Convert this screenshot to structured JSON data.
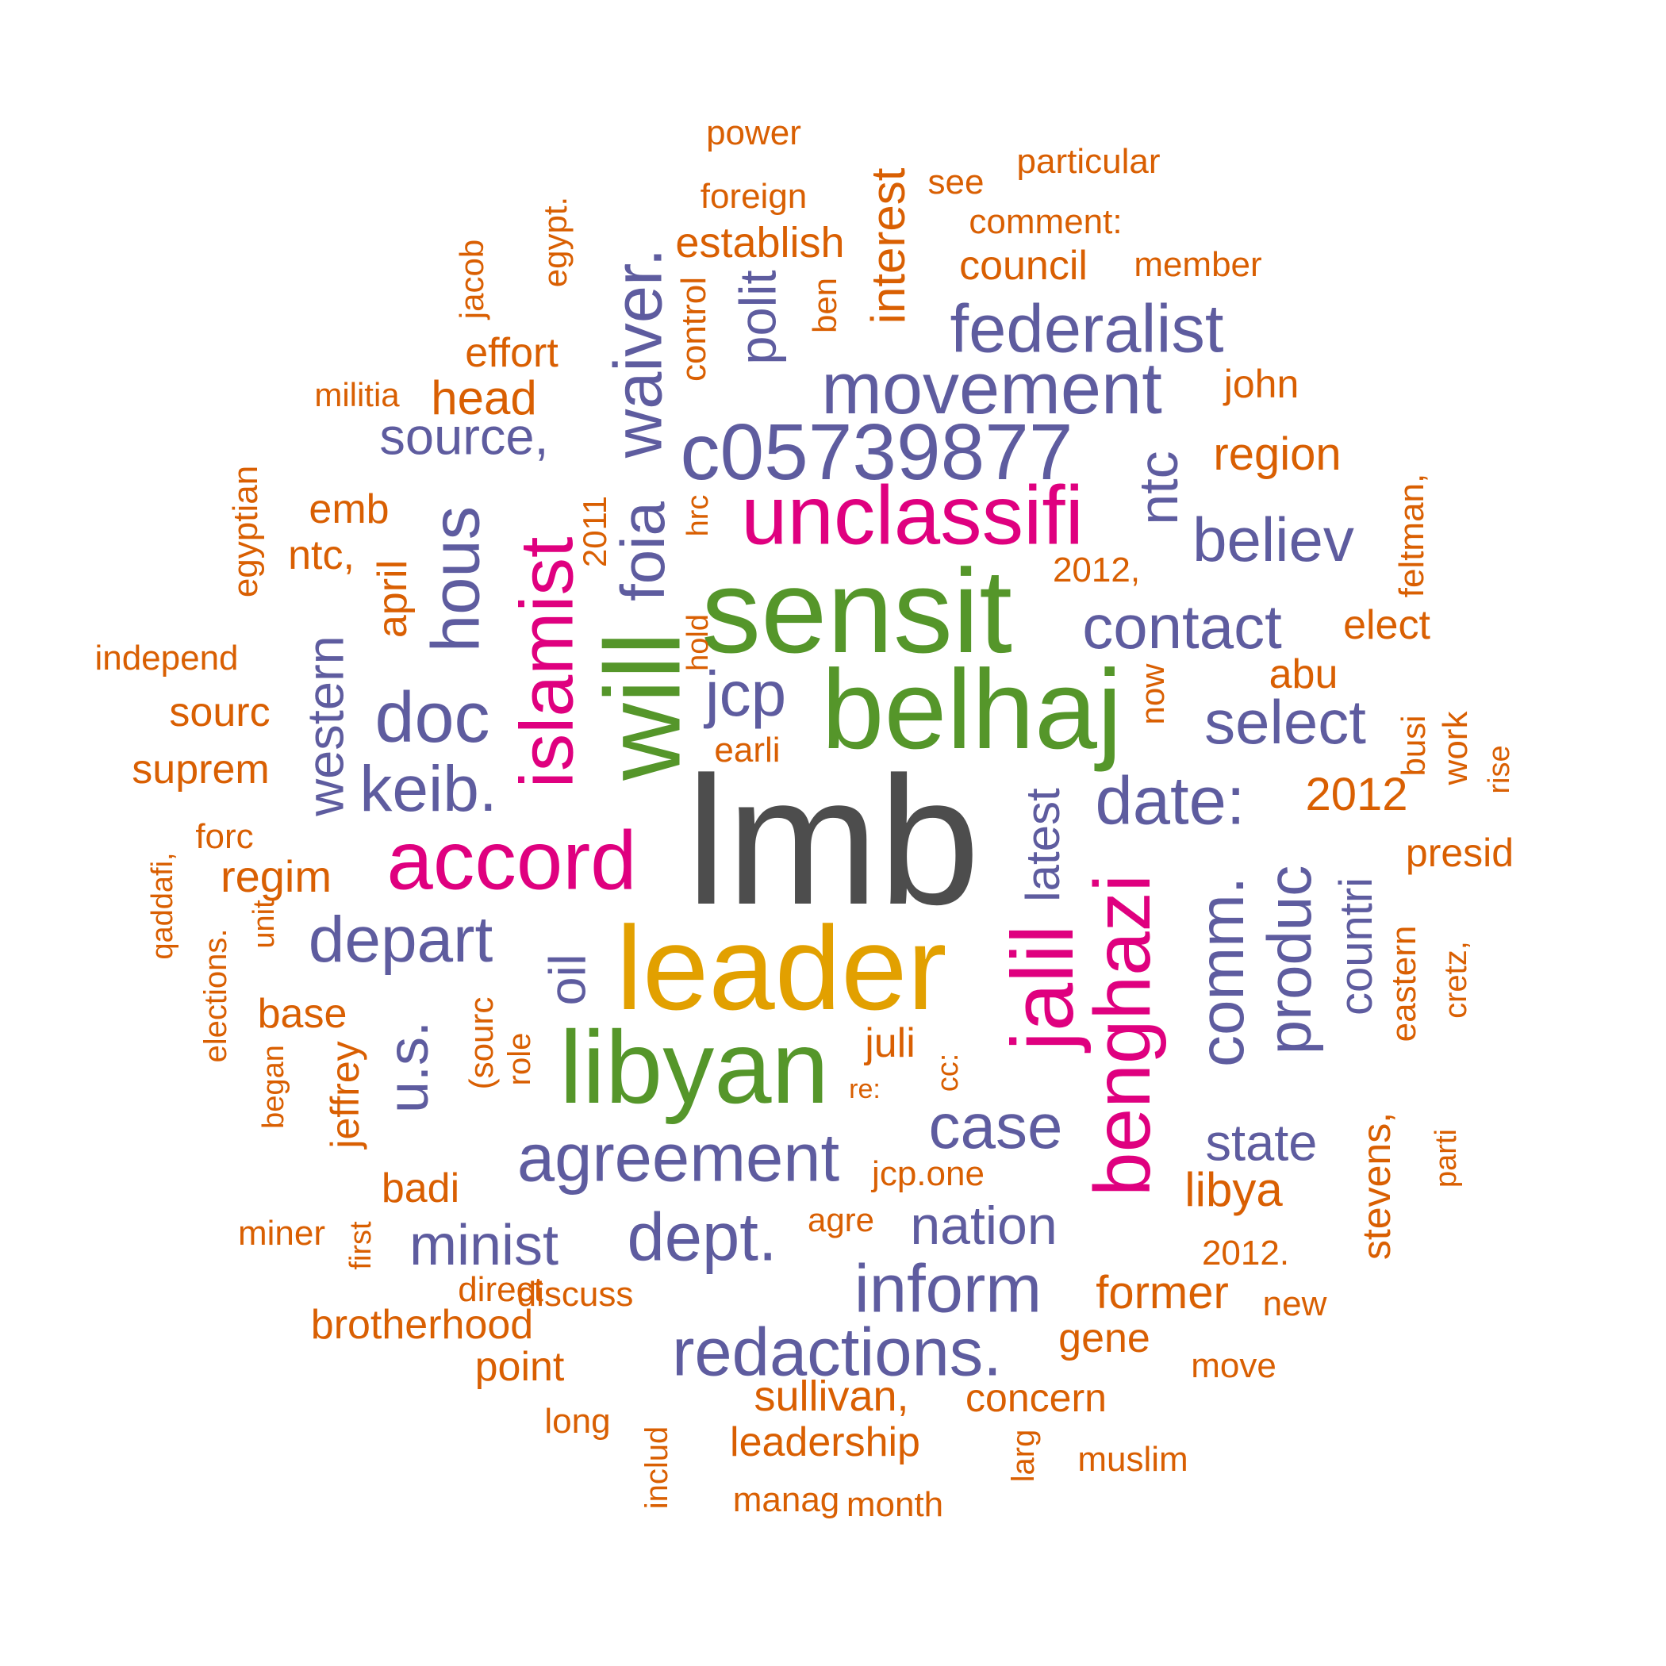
{
  "palette": {
    "gray": "#4d4d4d",
    "orange": "#d95f02",
    "purple": "#5e5c9f",
    "magenta": "#df007f",
    "green": "#55962a",
    "gold": "#e2a000"
  },
  "words": [
    {
      "text": "lmb",
      "color": "gray"
    },
    {
      "text": "leader",
      "color": "gold"
    },
    {
      "text": "sensit",
      "color": "green"
    },
    {
      "text": "belhaj",
      "color": "green"
    },
    {
      "text": "libyan",
      "color": "green"
    },
    {
      "text": "will",
      "color": "green"
    },
    {
      "text": "unclassifi",
      "color": "magenta"
    },
    {
      "text": "accord",
      "color": "magenta"
    },
    {
      "text": "islamist",
      "color": "magenta"
    },
    {
      "text": "jalil",
      "color": "magenta"
    },
    {
      "text": "benghazi",
      "color": "magenta"
    },
    {
      "text": "c05739877",
      "color": "purple"
    },
    {
      "text": "movement",
      "color": "purple"
    },
    {
      "text": "federalist",
      "color": "purple"
    },
    {
      "text": "waiver.",
      "color": "purple"
    },
    {
      "text": "foia",
      "color": "purple"
    },
    {
      "text": "hous",
      "color": "purple"
    },
    {
      "text": "source,",
      "color": "purple"
    },
    {
      "text": "polit",
      "color": "purple"
    },
    {
      "text": "ntc",
      "color": "purple"
    },
    {
      "text": "believ",
      "color": "purple"
    },
    {
      "text": "contact",
      "color": "purple"
    },
    {
      "text": "select",
      "color": "purple"
    },
    {
      "text": "date:",
      "color": "purple"
    },
    {
      "text": "jcp",
      "color": "purple"
    },
    {
      "text": "doc",
      "color": "purple"
    },
    {
      "text": "keib.",
      "color": "purple"
    },
    {
      "text": "western",
      "color": "purple"
    },
    {
      "text": "depart",
      "color": "purple"
    },
    {
      "text": "oil",
      "color": "purple"
    },
    {
      "text": "u.s.",
      "color": "purple"
    },
    {
      "text": "agreement",
      "color": "purple"
    },
    {
      "text": "case",
      "color": "purple"
    },
    {
      "text": "latest",
      "color": "purple"
    },
    {
      "text": "comm.",
      "color": "purple"
    },
    {
      "text": "produc",
      "color": "purple"
    },
    {
      "text": "countri",
      "color": "purple"
    },
    {
      "text": "state",
      "color": "purple"
    },
    {
      "text": "minist",
      "color": "purple"
    },
    {
      "text": "dept.",
      "color": "purple"
    },
    {
      "text": "nation",
      "color": "purple"
    },
    {
      "text": "inform",
      "color": "purple"
    },
    {
      "text": "redactions.",
      "color": "purple"
    },
    {
      "text": "power",
      "color": "orange"
    },
    {
      "text": "particular",
      "color": "orange"
    },
    {
      "text": "foreign",
      "color": "orange"
    },
    {
      "text": "see",
      "color": "orange"
    },
    {
      "text": "interest",
      "color": "orange"
    },
    {
      "text": "comment:",
      "color": "orange"
    },
    {
      "text": "establish",
      "color": "orange"
    },
    {
      "text": "egypt.",
      "color": "orange"
    },
    {
      "text": "jacob",
      "color": "orange"
    },
    {
      "text": "council",
      "color": "orange"
    },
    {
      "text": "member",
      "color": "orange"
    },
    {
      "text": "control",
      "color": "orange"
    },
    {
      "text": "ben",
      "color": "orange"
    },
    {
      "text": "effort",
      "color": "orange"
    },
    {
      "text": "militia",
      "color": "orange"
    },
    {
      "text": "head",
      "color": "orange"
    },
    {
      "text": "john",
      "color": "orange"
    },
    {
      "text": "region",
      "color": "orange"
    },
    {
      "text": "feltman,",
      "color": "orange"
    },
    {
      "text": "egyptian",
      "color": "orange"
    },
    {
      "text": "emb",
      "color": "orange"
    },
    {
      "text": "hrc",
      "color": "orange"
    },
    {
      "text": "2011",
      "color": "orange"
    },
    {
      "text": "ntc,",
      "color": "orange"
    },
    {
      "text": "april",
      "color": "orange"
    },
    {
      "text": "2012,",
      "color": "orange"
    },
    {
      "text": "hold",
      "color": "orange"
    },
    {
      "text": "elect",
      "color": "orange"
    },
    {
      "text": "independ",
      "color": "orange"
    },
    {
      "text": "abu",
      "color": "orange"
    },
    {
      "text": "sourc",
      "color": "orange"
    },
    {
      "text": "now",
      "color": "orange"
    },
    {
      "text": "work",
      "color": "orange"
    },
    {
      "text": "busi",
      "color": "orange"
    },
    {
      "text": "suprem",
      "color": "orange"
    },
    {
      "text": "earli",
      "color": "orange"
    },
    {
      "text": "rise",
      "color": "orange"
    },
    {
      "text": "2012",
      "color": "orange"
    },
    {
      "text": "forc",
      "color": "orange"
    },
    {
      "text": "qaddafi,",
      "color": "orange"
    },
    {
      "text": "presid",
      "color": "orange"
    },
    {
      "text": "regim",
      "color": "orange"
    },
    {
      "text": "unit",
      "color": "orange"
    },
    {
      "text": "elections.",
      "color": "orange"
    },
    {
      "text": "cretz,",
      "color": "orange"
    },
    {
      "text": "eastern",
      "color": "orange"
    },
    {
      "text": "base",
      "color": "orange"
    },
    {
      "text": "(sourc",
      "color": "orange"
    },
    {
      "text": "juli",
      "color": "orange"
    },
    {
      "text": "began",
      "color": "orange"
    },
    {
      "text": "role",
      "color": "orange"
    },
    {
      "text": "jeffrey",
      "color": "orange"
    },
    {
      "text": "cc:",
      "color": "orange"
    },
    {
      "text": "re:",
      "color": "orange"
    },
    {
      "text": "parti",
      "color": "orange"
    },
    {
      "text": "stevens,",
      "color": "orange"
    },
    {
      "text": "jcp.one",
      "color": "orange"
    },
    {
      "text": "badi",
      "color": "orange"
    },
    {
      "text": "libya",
      "color": "orange"
    },
    {
      "text": "agre",
      "color": "orange"
    },
    {
      "text": "miner",
      "color": "orange"
    },
    {
      "text": "first",
      "color": "orange"
    },
    {
      "text": "2012.",
      "color": "orange"
    },
    {
      "text": "direct",
      "color": "orange"
    },
    {
      "text": "discuss",
      "color": "orange"
    },
    {
      "text": "former",
      "color": "orange"
    },
    {
      "text": "new",
      "color": "orange"
    },
    {
      "text": "brotherhood",
      "color": "orange"
    },
    {
      "text": "gene",
      "color": "orange"
    },
    {
      "text": "point",
      "color": "orange"
    },
    {
      "text": "move",
      "color": "orange"
    },
    {
      "text": "sullivan,",
      "color": "orange"
    },
    {
      "text": "concern",
      "color": "orange"
    },
    {
      "text": "long",
      "color": "orange"
    },
    {
      "text": "includ",
      "color": "orange"
    },
    {
      "text": "leadership",
      "color": "orange"
    },
    {
      "text": "larg",
      "color": "orange"
    },
    {
      "text": "muslim",
      "color": "orange"
    },
    {
      "text": "manag",
      "color": "orange"
    },
    {
      "text": "month",
      "color": "orange"
    }
  ]
}
